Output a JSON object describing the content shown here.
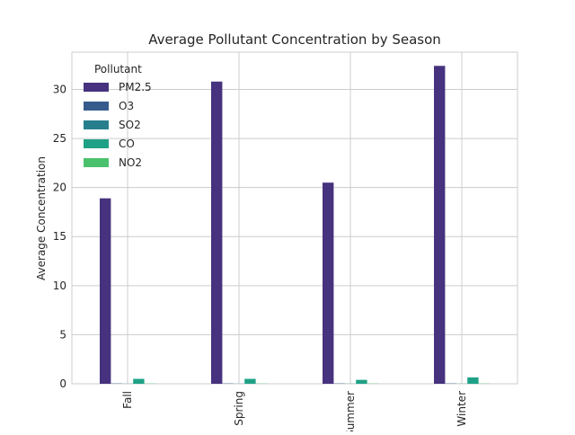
{
  "chart_data": {
    "type": "bar",
    "title": "Average Pollutant Concentration by Season",
    "xlabel": "",
    "ylabel": "Average Concentration",
    "categories": [
      "Fall",
      "Spring",
      "Summer",
      "Winter"
    ],
    "ylim": [
      0,
      33.8
    ],
    "yticks": [
      0,
      5,
      10,
      15,
      20,
      25,
      30
    ],
    "grid": true,
    "legend": {
      "title": "Pollutant",
      "placement": "top-left"
    },
    "series": [
      {
        "name": "PM2.5",
        "color": "#46327e",
        "values": [
          18.9,
          30.8,
          20.5,
          32.4
        ]
      },
      {
        "name": "O3",
        "color": "#365c8d",
        "values": [
          0.03,
          0.03,
          0.03,
          0.03
        ]
      },
      {
        "name": "SO2",
        "color": "#277f8e",
        "values": [
          0.01,
          0.01,
          0.01,
          0.01
        ]
      },
      {
        "name": "CO",
        "color": "#1fa187",
        "values": [
          0.5,
          0.5,
          0.4,
          0.65
        ]
      },
      {
        "name": "NO2",
        "color": "#4ac16d",
        "values": [
          0.02,
          0.02,
          0.02,
          0.02
        ]
      }
    ]
  }
}
